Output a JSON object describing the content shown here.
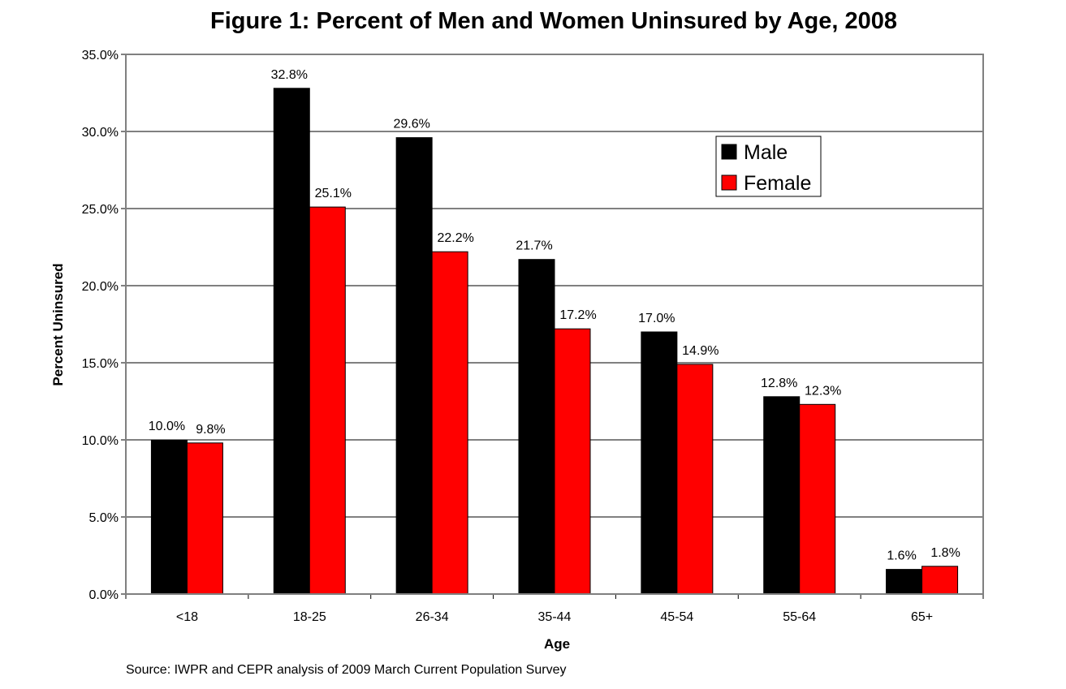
{
  "chart_data": {
    "type": "bar",
    "title": "Figure 1: Percent of Men and Women Uninsured by Age, 2008",
    "xlabel": "Age",
    "ylabel": "Percent Uninsured",
    "source": "Source: IWPR and CEPR analysis of 2009 March Current Population Survey",
    "categories": [
      "<18",
      "18-25",
      "26-34",
      "35-44",
      "45-54",
      "55-64",
      "65+"
    ],
    "series": [
      {
        "name": "Male",
        "color": "#000000",
        "values": [
          10.0,
          32.8,
          29.6,
          21.7,
          17.0,
          12.8,
          1.6
        ],
        "labels": [
          "10.0%",
          "32.8%",
          "29.6%",
          "21.7%",
          "17.0%",
          "12.8%",
          "1.6%"
        ]
      },
      {
        "name": "Female",
        "color": "#ff0000",
        "values": [
          9.8,
          25.1,
          22.2,
          17.2,
          14.9,
          12.3,
          1.8
        ],
        "labels": [
          "9.8%",
          "25.1%",
          "22.2%",
          "17.2%",
          "14.9%",
          "12.3%",
          "1.8%"
        ]
      }
    ],
    "ylim": [
      0,
      35
    ],
    "yticks": [
      0,
      5,
      10,
      15,
      20,
      25,
      30,
      35
    ],
    "ytick_labels": [
      "0.0%",
      "5.0%",
      "10.0%",
      "15.0%",
      "20.0%",
      "25.0%",
      "30.0%",
      "35.0%"
    ],
    "grid": true,
    "legend_position": "top-right"
  }
}
